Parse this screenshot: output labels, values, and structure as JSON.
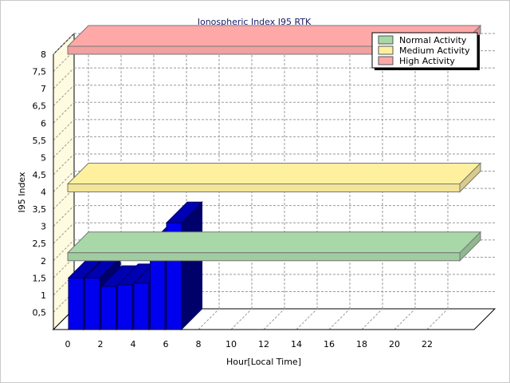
{
  "chart_data": {
    "type": "bar",
    "title": "Ionospheric Index I95 RTK",
    "xlabel": "Hour[Local Time]",
    "ylabel": "I95 Index",
    "x_ticks": [
      "0",
      "2",
      "4",
      "6",
      "8",
      "10",
      "12",
      "14",
      "16",
      "18",
      "20",
      "22"
    ],
    "y_ticks": [
      "0,5",
      "1",
      "1,5",
      "2",
      "2,5",
      "3",
      "3,5",
      "4",
      "4,5",
      "5",
      "5,5",
      "6",
      "6,5",
      "7",
      "7,5",
      "8"
    ],
    "xlim": [
      0,
      24
    ],
    "ylim": [
      0,
      8
    ],
    "hours": [
      0,
      1,
      2,
      3,
      4,
      5,
      6
    ],
    "values": [
      1.5,
      1.5,
      1.25,
      1.3,
      1.35,
      2.5,
      3.1
    ],
    "bar_color": "#0000ee",
    "thresholds": [
      {
        "name": "Normal Activity",
        "value": 2,
        "color": "#a8d8a8"
      },
      {
        "name": "Medium Activity",
        "value": 4,
        "color": "#fff0a0"
      },
      {
        "name": "High Activity",
        "value": 8,
        "color": "#ffa8a8"
      }
    ],
    "grid": true,
    "legend_position": "top-right"
  }
}
